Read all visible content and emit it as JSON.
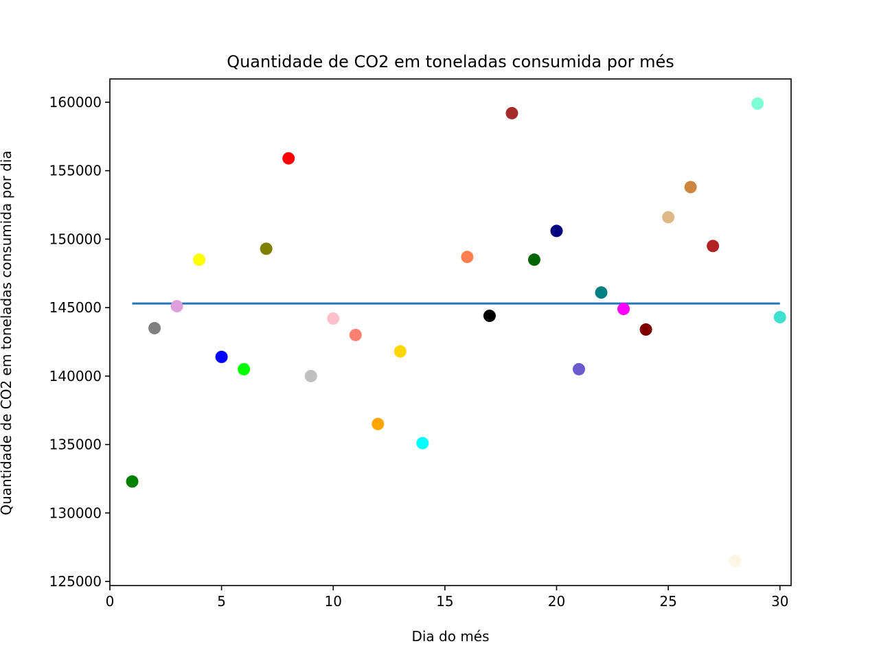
{
  "chart_data": {
    "type": "scatter",
    "title": "Quantidade de CO2 em toneladas consumida por més",
    "xlabel": "Dia do més",
    "ylabel": "Quantidade de CO2 em toneladas consumida por dia",
    "xlim": [
      0,
      30.5
    ],
    "ylim": [
      124700,
      161700
    ],
    "xticks": [
      0,
      5,
      10,
      15,
      20,
      25,
      30
    ],
    "xtick_labels": [
      "0",
      "5",
      "10",
      "15",
      "20",
      "25",
      "30"
    ],
    "yticks": [
      125000,
      130000,
      135000,
      140000,
      145000,
      150000,
      155000,
      160000
    ],
    "ytick_labels": [
      "125000",
      "130000",
      "135000",
      "140000",
      "145000",
      "150000",
      "155000",
      "160000"
    ],
    "grid": false,
    "points": [
      {
        "x": 1,
        "y": 132300,
        "color": "#008000"
      },
      {
        "x": 2,
        "y": 143500,
        "color": "#808080"
      },
      {
        "x": 3,
        "y": 145100,
        "color": "#dda0dd"
      },
      {
        "x": 4,
        "y": 148500,
        "color": "#ffff00"
      },
      {
        "x": 5,
        "y": 141400,
        "color": "#0000ff"
      },
      {
        "x": 6,
        "y": 140500,
        "color": "#00ff00"
      },
      {
        "x": 7,
        "y": 149300,
        "color": "#808000"
      },
      {
        "x": 8,
        "y": 155900,
        "color": "#ff0000"
      },
      {
        "x": 9,
        "y": 140000,
        "color": "#c0c0c0"
      },
      {
        "x": 10,
        "y": 144200,
        "color": "#ffc0cb"
      },
      {
        "x": 11,
        "y": 143000,
        "color": "#fa8072"
      },
      {
        "x": 12,
        "y": 136500,
        "color": "#ffa500"
      },
      {
        "x": 13,
        "y": 141800,
        "color": "#ffd700"
      },
      {
        "x": 14,
        "y": 135100,
        "color": "#00ffff"
      },
      {
        "x": 16,
        "y": 148700,
        "color": "#ff7f50"
      },
      {
        "x": 17,
        "y": 144400,
        "color": "#000000"
      },
      {
        "x": 18,
        "y": 159200,
        "color": "#a52a2a"
      },
      {
        "x": 19,
        "y": 148500,
        "color": "#006400"
      },
      {
        "x": 20,
        "y": 150600,
        "color": "#000080"
      },
      {
        "x": 21,
        "y": 140500,
        "color": "#6a5acd"
      },
      {
        "x": 22,
        "y": 146100,
        "color": "#008080"
      },
      {
        "x": 23,
        "y": 144900,
        "color": "#ff00ff"
      },
      {
        "x": 24,
        "y": 143400,
        "color": "#800000"
      },
      {
        "x": 25,
        "y": 151600,
        "color": "#deb887"
      },
      {
        "x": 26,
        "y": 153800,
        "color": "#cd853f"
      },
      {
        "x": 27,
        "y": 149500,
        "color": "#b22222"
      },
      {
        "x": 28,
        "y": 126500,
        "color": "#fdf5e6"
      },
      {
        "x": 29,
        "y": 159900,
        "color": "#7fffd4"
      },
      {
        "x": 30,
        "y": 144300,
        "color": "#40e0d0"
      }
    ],
    "mean_line": {
      "x": [
        1,
        30
      ],
      "y": 145300,
      "color": "#1f77b4"
    }
  }
}
